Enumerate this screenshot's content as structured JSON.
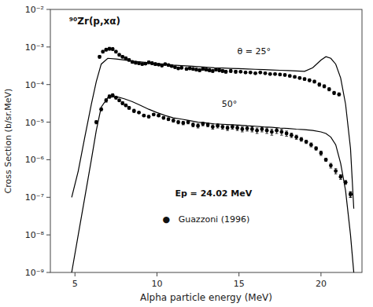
{
  "chart_data": {
    "type": "line",
    "xlabel": "Alpha particle energy (MeV)",
    "ylabel": "Cross Section (b/sr.MeV)",
    "log": "y",
    "xlim": [
      3.5,
      22.5
    ],
    "ylim": [
      1e-09,
      0.01
    ],
    "xticks": [
      5,
      10,
      15,
      20
    ],
    "yticks": [
      {
        "value": 1e-09,
        "label": "10⁻⁹"
      },
      {
        "value": 1e-08,
        "label": "10⁻⁸"
      },
      {
        "value": 1e-07,
        "label": "10⁻⁷"
      },
      {
        "value": 1e-06,
        "label": "10⁻⁶"
      },
      {
        "value": 1e-05,
        "label": "10⁻⁵"
      },
      {
        "value": 0.0001,
        "label": "10⁻⁴"
      },
      {
        "value": 0.001,
        "label": "10⁻³"
      },
      {
        "value": 0.01,
        "label": "10⁻²"
      }
    ],
    "annotations": [
      "⁹⁰Zr(p,xα)",
      "θ = 25°",
      "50°",
      "Ep = 24.02 MeV",
      "●   Guazzoni (1996)"
    ],
    "series": [
      {
        "type": "line",
        "color": "black",
        "x": [
          4.8,
          5.2,
          5.6,
          6.0,
          6.3,
          6.6,
          7.0,
          7.5,
          8.0,
          8.5,
          9.0,
          9.5,
          10.0,
          10.5,
          11.0,
          11.5,
          12.0,
          12.5,
          13.0,
          13.5,
          14.0,
          14.5,
          15.0,
          15.5,
          16.0,
          16.5,
          17.0,
          17.5,
          18.0,
          18.5,
          19.0,
          19.5,
          20.0,
          20.3,
          20.6,
          20.9,
          21.2,
          21.5,
          21.8,
          22.0
        ],
        "values": [
          1e-07,
          5e-07,
          4e-06,
          3e-05,
          0.00012,
          0.00035,
          0.0005,
          0.00048,
          0.00045,
          0.00042,
          0.0004,
          0.00038,
          0.00036,
          0.00035,
          0.00033,
          0.00032,
          0.00031,
          0.0003,
          0.00029,
          0.00028,
          0.000275,
          0.00027,
          0.000265,
          0.00026,
          0.000255,
          0.00025,
          0.000245,
          0.00024,
          0.000235,
          0.00023,
          0.000225,
          0.00028,
          0.00045,
          0.00055,
          0.0005,
          0.00035,
          0.00015,
          3e-05,
          2e-06,
          5e-08
        ]
      },
      {
        "type": "line",
        "color": "black",
        "x": [
          4.8,
          5.2,
          5.6,
          6.0,
          6.3,
          6.6,
          7.0,
          7.5,
          8.0,
          8.5,
          9.0,
          9.5,
          10.0,
          10.5,
          11.0,
          11.5,
          12.0,
          12.5,
          13.0,
          13.5,
          14.0,
          14.5,
          15.0,
          15.5,
          16.0,
          16.5,
          17.0,
          17.5,
          18.0,
          18.5,
          19.0,
          19.5,
          20.0,
          20.3,
          20.6,
          20.9,
          21.2,
          21.5,
          21.8,
          22.0
        ],
        "values": [
          1e-09,
          1e-08,
          1e-07,
          1e-06,
          6e-06,
          2.5e-05,
          4.5e-05,
          4.8e-05,
          4.2e-05,
          3.5e-05,
          2.8e-05,
          2.2e-05,
          1.8e-05,
          1.5e-05,
          1.3e-05,
          1.2e-05,
          1.1e-05,
          1e-05,
          9.5e-06,
          9e-06,
          8.8e-06,
          8.5e-06,
          8.3e-06,
          8e-06,
          7.8e-06,
          7.5e-06,
          7.3e-06,
          7e-06,
          6.8e-06,
          6.5e-06,
          6.3e-06,
          6e-06,
          5.5e-06,
          5e-06,
          4e-06,
          2.5e-06,
          8e-07,
          1.5e-07,
          1e-08,
          1e-09
        ]
      },
      {
        "type": "scatter",
        "marker": "circle",
        "color": "black",
        "x": [
          6.5,
          6.7,
          6.9,
          7.1,
          7.3,
          7.5,
          7.7,
          7.9,
          8.1,
          8.3,
          8.5,
          8.7,
          8.9,
          9.1,
          9.3,
          9.5,
          9.7,
          9.9,
          10.1,
          10.3,
          10.5,
          10.7,
          10.9,
          11.1,
          11.3,
          11.5,
          11.8,
          12.0,
          12.2,
          12.4,
          12.6,
          12.8,
          13.0,
          13.2,
          13.4,
          13.6,
          13.8,
          14.0,
          14.2,
          14.5,
          14.8,
          15.1,
          15.4,
          15.7,
          16.0,
          16.3,
          16.6,
          16.9,
          17.2,
          17.5,
          17.8,
          18.1,
          18.4,
          18.7,
          19.0,
          19.3,
          19.6,
          19.9,
          20.2,
          20.5,
          20.8,
          21.1,
          21.8
        ],
        "values": [
          0.00055,
          0.00075,
          0.00085,
          0.0009,
          0.00088,
          0.00075,
          0.00062,
          0.00055,
          0.0005,
          0.00045,
          0.0004,
          0.00038,
          0.00037,
          0.00035,
          0.00036,
          0.00039,
          0.00037,
          0.00035,
          0.00034,
          0.00032,
          0.00035,
          0.00033,
          0.00031,
          0.00029,
          0.00027,
          0.00028,
          0.00026,
          0.00027,
          0.00026,
          0.00025,
          0.00024,
          0.00026,
          0.00025,
          0.00024,
          0.00023,
          0.00025,
          0.00024,
          0.00023,
          0.00022,
          0.00023,
          0.00022,
          0.00022,
          0.00021,
          0.00021,
          0.0002,
          0.00021,
          0.0002,
          0.00019,
          0.00019,
          0.000185,
          0.00018,
          0.00017,
          0.00016,
          0.00015,
          0.00014,
          0.00013,
          0.00012,
          0.0001,
          9e-05,
          7.5e-05,
          6e-05,
          5.5e-05,
          1.2e-07
        ],
        "errors": [
          5e-05,
          6e-05,
          7e-05,
          8e-05,
          7e-05,
          6e-05,
          5e-05,
          4e-05,
          4e-05,
          3e-05,
          3e-05,
          3e-05,
          3e-05,
          2e-05,
          2e-05,
          3e-05,
          3e-05,
          3e-05,
          2e-05,
          2e-05,
          2e-05,
          2e-05,
          2e-05,
          2e-05,
          2e-05,
          2e-05,
          2e-05,
          2e-05,
          2e-05,
          2e-05,
          2e-05,
          2e-05,
          2e-05,
          2e-05,
          2e-05,
          2e-05,
          2e-05,
          2e-05,
          2e-05,
          2e-05,
          2e-05,
          1e-05,
          1e-05,
          1e-05,
          1e-05,
          1e-05,
          1e-05,
          1e-05,
          1e-05,
          1e-05,
          1e-05,
          1e-05,
          1e-05,
          1e-05,
          1e-05,
          1e-05,
          1e-05,
          1e-05,
          8e-06,
          7e-06,
          6e-06,
          5e-06,
          2e-08
        ]
      },
      {
        "type": "scatter",
        "marker": "circle",
        "color": "black",
        "x": [
          6.3,
          6.6,
          6.9,
          7.1,
          7.3,
          7.5,
          7.7,
          7.9,
          8.1,
          8.3,
          8.6,
          8.9,
          9.2,
          9.5,
          9.8,
          10.1,
          10.4,
          10.7,
          11.0,
          11.3,
          11.6,
          11.9,
          12.2,
          12.5,
          12.8,
          13.1,
          13.4,
          13.7,
          14.0,
          14.3,
          14.6,
          14.9,
          15.2,
          15.5,
          15.8,
          16.1,
          16.4,
          16.7,
          17.0,
          17.3,
          17.6,
          17.9,
          18.2,
          18.5,
          18.8,
          19.1,
          19.4,
          19.7,
          20.0,
          20.3,
          20.6,
          20.9,
          21.2,
          21.5,
          21.8
        ],
        "values": [
          1e-05,
          2.2e-05,
          3.8e-05,
          4.8e-05,
          5.2e-05,
          4.5e-05,
          3.8e-05,
          3.2e-05,
          2.8e-05,
          2.4e-05,
          2e-05,
          1.8e-05,
          1.5e-05,
          1.4e-05,
          1.6e-05,
          1.5e-05,
          1.3e-05,
          1.2e-05,
          1.1e-05,
          1e-05,
          9.5e-06,
          1e-05,
          8.5e-06,
          8e-06,
          9e-06,
          8.5e-06,
          7.5e-06,
          8e-06,
          7.5e-06,
          7e-06,
          7.5e-06,
          7e-06,
          6.5e-06,
          6.8e-06,
          6.5e-06,
          6e-06,
          6.5e-06,
          6e-06,
          5.5e-06,
          6e-06,
          5.5e-06,
          5e-06,
          4.5e-06,
          4e-06,
          3.5e-06,
          3e-06,
          2.5e-06,
          2e-06,
          1.5e-06,
          1e-06,
          7e-07,
          5e-07,
          3.5e-07,
          2.5e-07,
          1.2e-07
        ],
        "errors": [
          1e-06,
          2e-06,
          4e-06,
          5e-06,
          5e-06,
          4e-06,
          3e-06,
          3e-06,
          2e-06,
          2e-06,
          2e-06,
          1e-06,
          1e-06,
          1e-06,
          1e-06,
          1e-06,
          1e-06,
          1e-06,
          1e-06,
          1e-06,
          1e-06,
          1e-06,
          1e-06,
          1e-06,
          1e-06,
          1e-06,
          1e-06,
          1e-06,
          1e-06,
          1e-06,
          1e-06,
          1e-06,
          1e-06,
          1e-06,
          1e-06,
          1e-06,
          1e-06,
          1e-06,
          1e-06,
          1e-06,
          1e-06,
          8e-07,
          6e-07,
          5e-07,
          4e-07,
          3e-07,
          3e-07,
          2e-07,
          2e-07,
          1e-07,
          1e-07,
          8e-08,
          5e-08,
          3e-08,
          2e-08
        ]
      }
    ]
  }
}
